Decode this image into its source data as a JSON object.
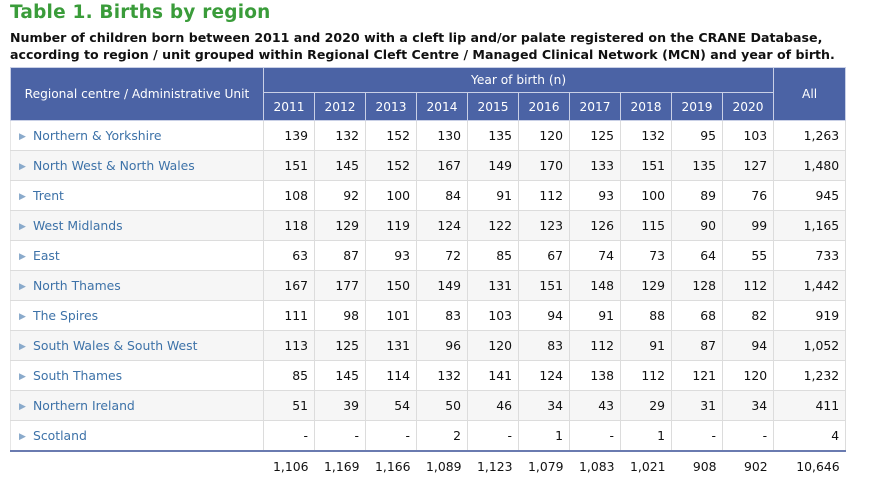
{
  "title": "Table 1. Births by region",
  "subtitle": "Number of children born between 2011 and 2020 with a cleft lip and/or palate registered on the CRANE Database, according to region / unit grouped within Regional Cleft Centre / Managed Clinical Network (MCN) and year of birth.",
  "header": {
    "region_label": "Regional centre / Administrative Unit",
    "year_group_label": "Year of birth (n)",
    "years": [
      "2011",
      "2012",
      "2013",
      "2014",
      "2015",
      "2016",
      "2017",
      "2018",
      "2019",
      "2020"
    ],
    "all_label": "All"
  },
  "rows": [
    {
      "name": "Northern & Yorkshire",
      "values": [
        "139",
        "132",
        "152",
        "130",
        "135",
        "120",
        "125",
        "132",
        "95",
        "103"
      ],
      "all": "1,263"
    },
    {
      "name": "North West & North Wales",
      "values": [
        "151",
        "145",
        "152",
        "167",
        "149",
        "170",
        "133",
        "151",
        "135",
        "127"
      ],
      "all": "1,480"
    },
    {
      "name": "Trent",
      "values": [
        "108",
        "92",
        "100",
        "84",
        "91",
        "112",
        "93",
        "100",
        "89",
        "76"
      ],
      "all": "945"
    },
    {
      "name": "West Midlands",
      "values": [
        "118",
        "129",
        "119",
        "124",
        "122",
        "123",
        "126",
        "115",
        "90",
        "99"
      ],
      "all": "1,165"
    },
    {
      "name": "East",
      "values": [
        "63",
        "87",
        "93",
        "72",
        "85",
        "67",
        "74",
        "73",
        "64",
        "55"
      ],
      "all": "733"
    },
    {
      "name": "North Thames",
      "values": [
        "167",
        "177",
        "150",
        "149",
        "131",
        "151",
        "148",
        "129",
        "128",
        "112"
      ],
      "all": "1,442"
    },
    {
      "name": "The Spires",
      "values": [
        "111",
        "98",
        "101",
        "83",
        "103",
        "94",
        "91",
        "88",
        "68",
        "82"
      ],
      "all": "919"
    },
    {
      "name": "South Wales & South West",
      "values": [
        "113",
        "125",
        "131",
        "96",
        "120",
        "83",
        "112",
        "91",
        "87",
        "94"
      ],
      "all": "1,052"
    },
    {
      "name": "South Thames",
      "values": [
        "85",
        "145",
        "114",
        "132",
        "141",
        "124",
        "138",
        "112",
        "121",
        "120"
      ],
      "all": "1,232"
    },
    {
      "name": "Northern Ireland",
      "values": [
        "51",
        "39",
        "54",
        "50",
        "46",
        "34",
        "43",
        "29",
        "31",
        "34"
      ],
      "all": "411"
    },
    {
      "name": "Scotland",
      "values": [
        "-",
        "-",
        "-",
        "2",
        "-",
        "1",
        "-",
        "1",
        "-",
        "-"
      ],
      "all": "4"
    }
  ],
  "totals": {
    "values": [
      "1,106",
      "1,169",
      "1,166",
      "1,089",
      "1,123",
      "1,079",
      "1,083",
      "1,021",
      "908",
      "902"
    ],
    "all": "10,646"
  },
  "colors": {
    "title": "#3a9c3a",
    "header_bg": "#4b63a5",
    "link": "#3d72a8"
  },
  "icons": {
    "row_expand": "triangle-right-icon"
  }
}
